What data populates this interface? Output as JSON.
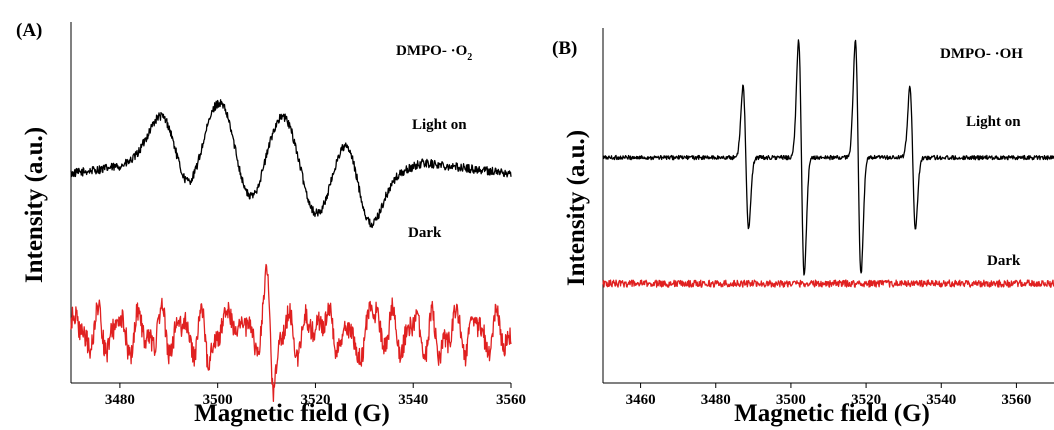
{
  "chart_data": [
    {
      "panel": "(A)",
      "type": "line",
      "xlabel": "Magnetic field (G)",
      "ylabel": "Intensity (a.u.)",
      "xlim": [
        3470,
        3560
      ],
      "xticks": [
        3480,
        3500,
        3520,
        3540,
        3560
      ],
      "y_ticks_shown": false,
      "grid": false,
      "legend": "none",
      "annotations": [
        "DMPO- ·O",
        "2",
        "Light on",
        "Dark"
      ],
      "series": [
        {
          "name": "Light on",
          "color": "#000000",
          "baseline": 0.58,
          "noise": 0.012,
          "peaks": [
            {
              "x": 3489,
              "a": 0.145,
              "w": 3.0
            },
            {
              "x": 3500.5,
              "a": 0.185,
              "w": 3.0
            },
            {
              "x": 3513.5,
              "a": 0.16,
              "w": 3.0
            },
            {
              "x": 3526.5,
              "a": 0.11,
              "w": 2.5
            }
          ],
          "troughs": [
            {
              "x": 3493.5,
              "a": 0.1,
              "w": 2.4
            },
            {
              "x": 3506.5,
              "a": 0.11,
              "w": 2.5
            },
            {
              "x": 3520,
              "a": 0.13,
              "w": 2.8
            },
            {
              "x": 3531,
              "a": 0.15,
              "w": 2.4
            }
          ],
          "drift": [
            {
              "x0": 3470,
              "y0": 0.0
            },
            {
              "x0": 3485,
              "y0": 0.03
            },
            {
              "x0": 3535,
              "y0": -0.01
            },
            {
              "x0": 3542,
              "y0": 0.03
            },
            {
              "x0": 3560,
              "y0": 0.0
            }
          ]
        },
        {
          "name": "Dark",
          "color": "#e02020",
          "baseline": 0.14,
          "noise": 0.03,
          "oscillation": {
            "period": 4.3,
            "amplitude": 0.045
          },
          "spikes": [
            {
              "x": 3510.3,
              "a": 0.14
            },
            {
              "x": 3511.3,
              "a": -0.14
            },
            {
              "x": 3503,
              "a": 0.09
            },
            {
              "x": 3521,
              "a": 0.08
            },
            {
              "x": 3532.5,
              "a": 0.07
            },
            {
              "x": 3498,
              "a": -0.06
            },
            {
              "x": 3528,
              "a": -0.06
            },
            {
              "x": 3545,
              "a": -0.06
            }
          ]
        }
      ]
    },
    {
      "panel": "(B)",
      "type": "line",
      "xlabel": "Magnetic field (G)",
      "ylabel": "Intensity (a.u.)",
      "xlim": [
        3450,
        3570
      ],
      "xticks": [
        3460,
        3480,
        3500,
        3520,
        3540,
        3560
      ],
      "y_ticks_shown": false,
      "grid": false,
      "legend": "none",
      "annotations": [
        "DMPO- ·OH",
        "Light on",
        "Dark"
      ],
      "series": [
        {
          "name": "Light on",
          "color": "#000000",
          "baseline": 0.635,
          "noise": 0.006,
          "derivative_lines": [
            {
              "x": 3488,
              "a": 0.2,
              "w": 0.75
            },
            {
              "x": 3502.8,
              "a": 0.33,
              "w": 0.75
            },
            {
              "x": 3517.9,
              "a": 0.33,
              "w": 0.75
            },
            {
              "x": 3532.4,
              "a": 0.2,
              "w": 0.75
            }
          ]
        },
        {
          "name": "Dark",
          "color": "#e02020",
          "baseline": 0.28,
          "noise": 0.01
        }
      ]
    }
  ]
}
